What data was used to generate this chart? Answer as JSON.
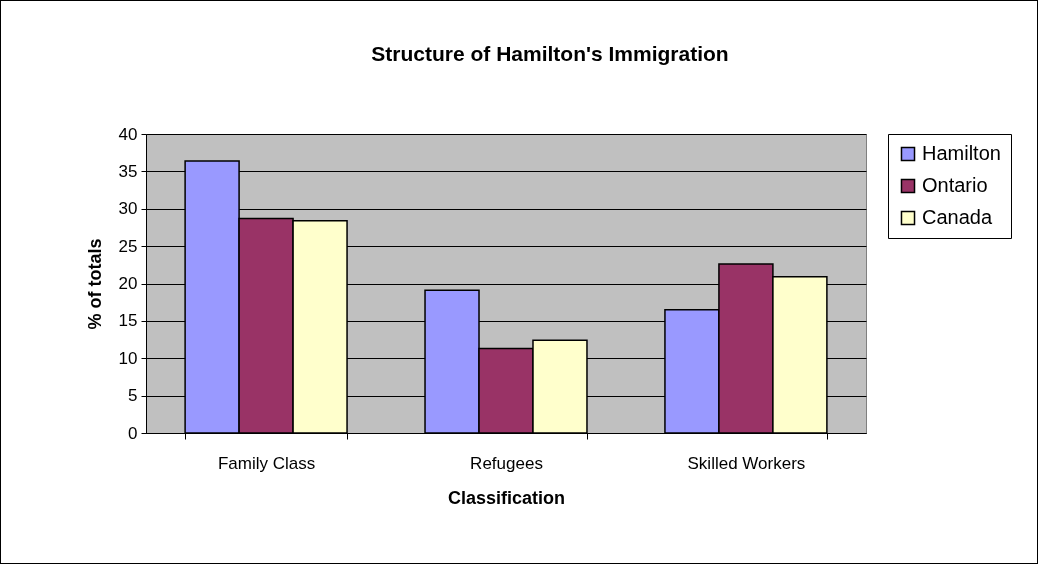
{
  "chart_data": {
    "type": "bar",
    "title": "Structure of Hamilton's Immigration",
    "xlabel": "Classification",
    "ylabel": "% of totals",
    "categories": [
      "Family Class",
      "Refugees",
      "Skilled Workers"
    ],
    "series": [
      {
        "name": "Hamilton",
        "color": "#9999ff",
        "values": [
          36.4,
          19.1,
          16.5
        ]
      },
      {
        "name": "Ontario",
        "color": "#993366",
        "values": [
          28.7,
          11.3,
          22.6
        ]
      },
      {
        "name": "Canada",
        "color": "#ffffcc",
        "values": [
          28.4,
          12.4,
          20.9
        ]
      }
    ],
    "ylim": [
      0,
      40
    ],
    "yticks": [
      0,
      5,
      10,
      15,
      20,
      25,
      30,
      35,
      40
    ],
    "grid": "y",
    "legend": "right"
  }
}
